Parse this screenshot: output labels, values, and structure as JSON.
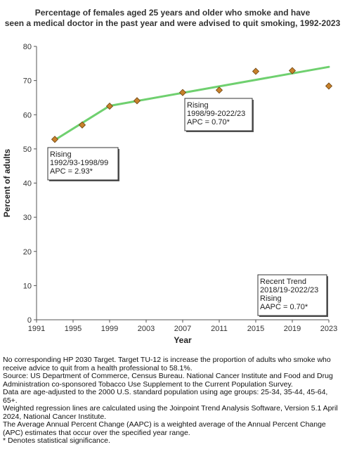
{
  "chart_data": {
    "type": "scatter",
    "title": "Percentage of females aged 25 years and older who smoke and have\nseen a medical doctor in the past year and were advised to quit smoking, 1992-2023",
    "xlabel": "Year",
    "ylabel": "Percent of adults",
    "xlim": [
      1991,
      2023
    ],
    "ylim": [
      0,
      80
    ],
    "x_ticks": [
      1991,
      1995,
      1999,
      2003,
      2007,
      2011,
      2015,
      2019,
      2023
    ],
    "y_ticks": [
      0,
      10,
      20,
      30,
      40,
      50,
      60,
      70,
      80
    ],
    "grid": false,
    "points": [
      {
        "x": 1993,
        "y": 52.8
      },
      {
        "x": 1996,
        "y": 57.0
      },
      {
        "x": 1999,
        "y": 62.5
      },
      {
        "x": 2002,
        "y": 64.1
      },
      {
        "x": 2007,
        "y": 66.5
      },
      {
        "x": 2011,
        "y": 67.2
      },
      {
        "x": 2015,
        "y": 72.7
      },
      {
        "x": 2019,
        "y": 72.9
      },
      {
        "x": 2023,
        "y": 68.4
      }
    ],
    "trend_segments": [
      {
        "x": [
          1993,
          1999
        ],
        "y": [
          52.6,
          62.6
        ]
      },
      {
        "x": [
          1999,
          2023
        ],
        "y": [
          62.6,
          74.0
        ]
      }
    ],
    "colors": {
      "points": "#c8812a",
      "points_stroke": "#6b4210",
      "trend": "#6fd06f",
      "axis": "#555555"
    },
    "annotations": [
      {
        "id": "seg1",
        "lines": [
          "Rising",
          "1992/93-1998/99",
          "APC =  2.93*"
        ]
      },
      {
        "id": "seg2",
        "lines": [
          "Rising",
          "1998/99-2022/23",
          "APC =  0.70*"
        ]
      },
      {
        "id": "recent",
        "lines": [
          "Recent Trend",
          "2018/19-2022/23",
          "Rising",
          "AAPC =  0.70*"
        ]
      }
    ]
  },
  "footnotes": [
    "No corresponding HP 2030 Target. Target TU-12 is increase the proportion of adults who smoke who receive advice to quit from a health professional to 58.1%.",
    "Source: US Department of Commerce, Census Bureau. National Cancer Institute and Food and Drug Administration co-sponsored Tobacco Use Supplement to the Current Population Survey.",
    "Data are age-adjusted to the 2000 U.S. standard population using age groups: 25-34, 35-44, 45-64, 65+.",
    "Weighted regression lines are calculated using the Joinpoint Trend Analysis Software, Version 5.1 April 2024, National Cancer Institute.",
    "The Average Annual Percent Change (AAPC) is a weighted average of the Annual Percent Change (APC) estimates that occur over the specified year range.",
    "* Denotes statistical significance."
  ]
}
